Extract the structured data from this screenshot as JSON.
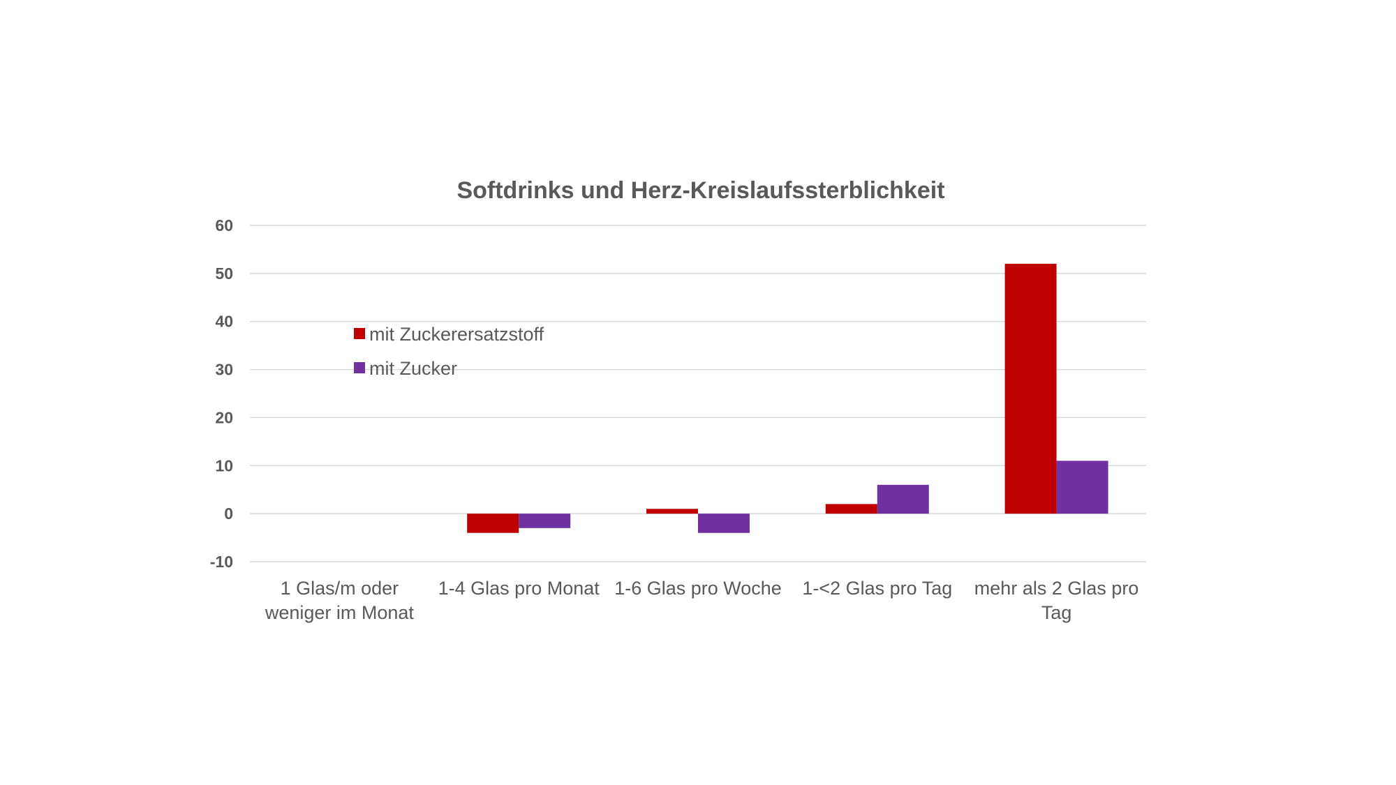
{
  "chart_data": {
    "type": "bar",
    "title": "Softdrinks und Herz-Kreislaufssterblichkeit",
    "xlabel": "",
    "ylabel": "",
    "ylim": [
      -10,
      60
    ],
    "yticks": [
      -10,
      0,
      10,
      20,
      30,
      40,
      50,
      60
    ],
    "grid": true,
    "legend_position": "upper-left inside plot",
    "categories": [
      [
        "1 Glas/m oder",
        "weniger im Monat"
      ],
      [
        "1-4 Glas pro Monat"
      ],
      [
        "1-6 Glas pro Woche"
      ],
      [
        "1-<2 Glas pro Tag"
      ],
      [
        "mehr als 2 Glas pro",
        "Tag"
      ]
    ],
    "series": [
      {
        "name": "mit Zuckerersatzstoff",
        "color": "#c00000",
        "values": [
          0,
          -4,
          1,
          2,
          52
        ]
      },
      {
        "name": "mit Zucker",
        "color": "#7030a0",
        "values": [
          0,
          -3,
          -4,
          6,
          11
        ]
      }
    ]
  }
}
